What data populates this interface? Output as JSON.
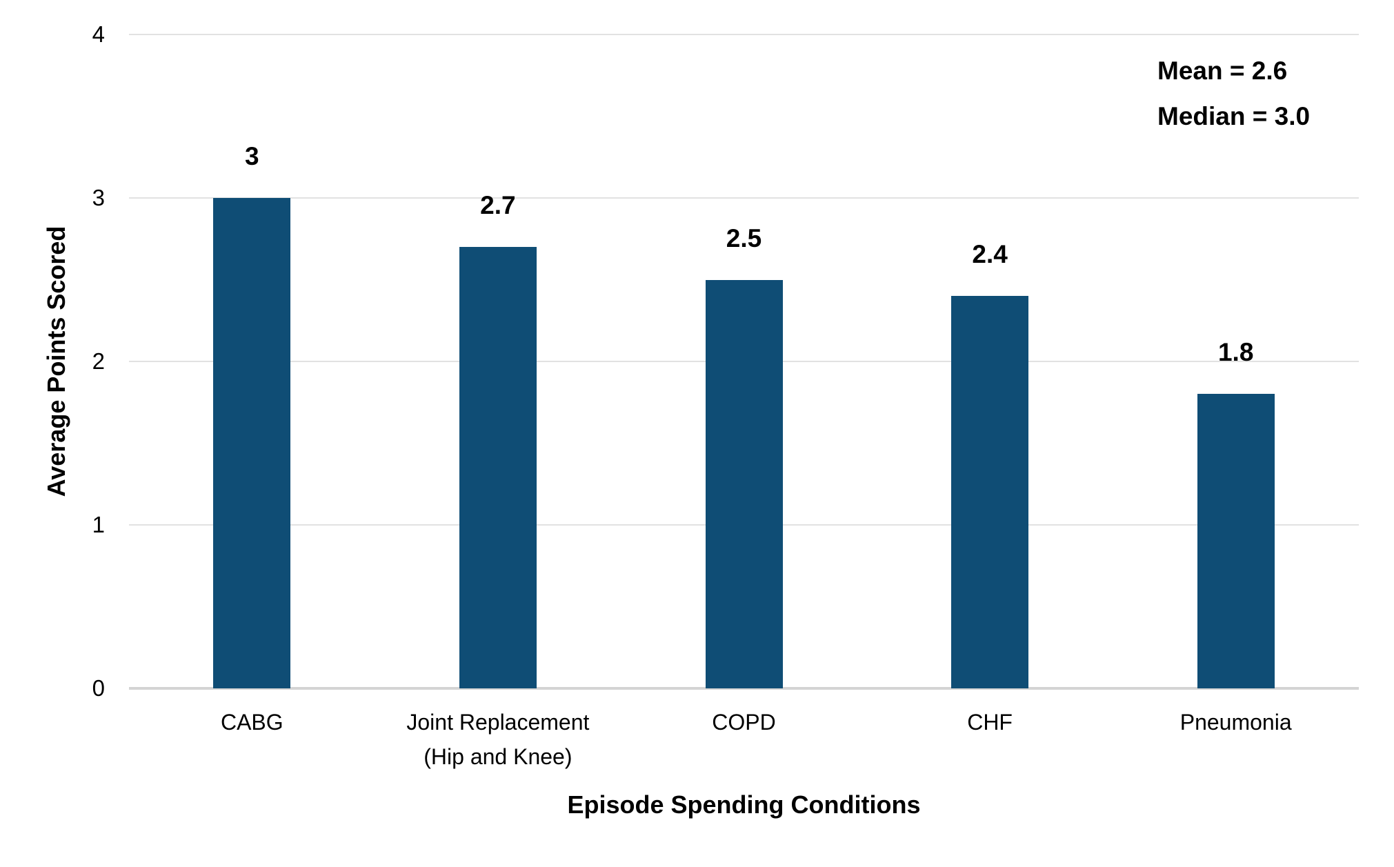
{
  "chart_data": {
    "type": "bar",
    "categories": [
      "CABG",
      "Joint Replacement\n(Hip and Knee)",
      "COPD",
      "CHF",
      "Pneumonia"
    ],
    "values": [
      3,
      2.7,
      2.5,
      2.4,
      1.8
    ],
    "value_labels": [
      "3",
      "2.7",
      "2.5",
      "2.4",
      "1.8"
    ],
    "title": "",
    "xlabel": "Episode Spending Conditions",
    "ylabel": "Average Points Scored",
    "ylim": [
      0,
      4
    ],
    "yticks": [
      0,
      1,
      2,
      3,
      4
    ],
    "grid": true,
    "legend": "none",
    "bar_color": "#0F4D75",
    "grid_color": "#E2E2E2",
    "annotation": {
      "lines": [
        "Mean = 2.6",
        "Median = 3.0"
      ]
    }
  }
}
